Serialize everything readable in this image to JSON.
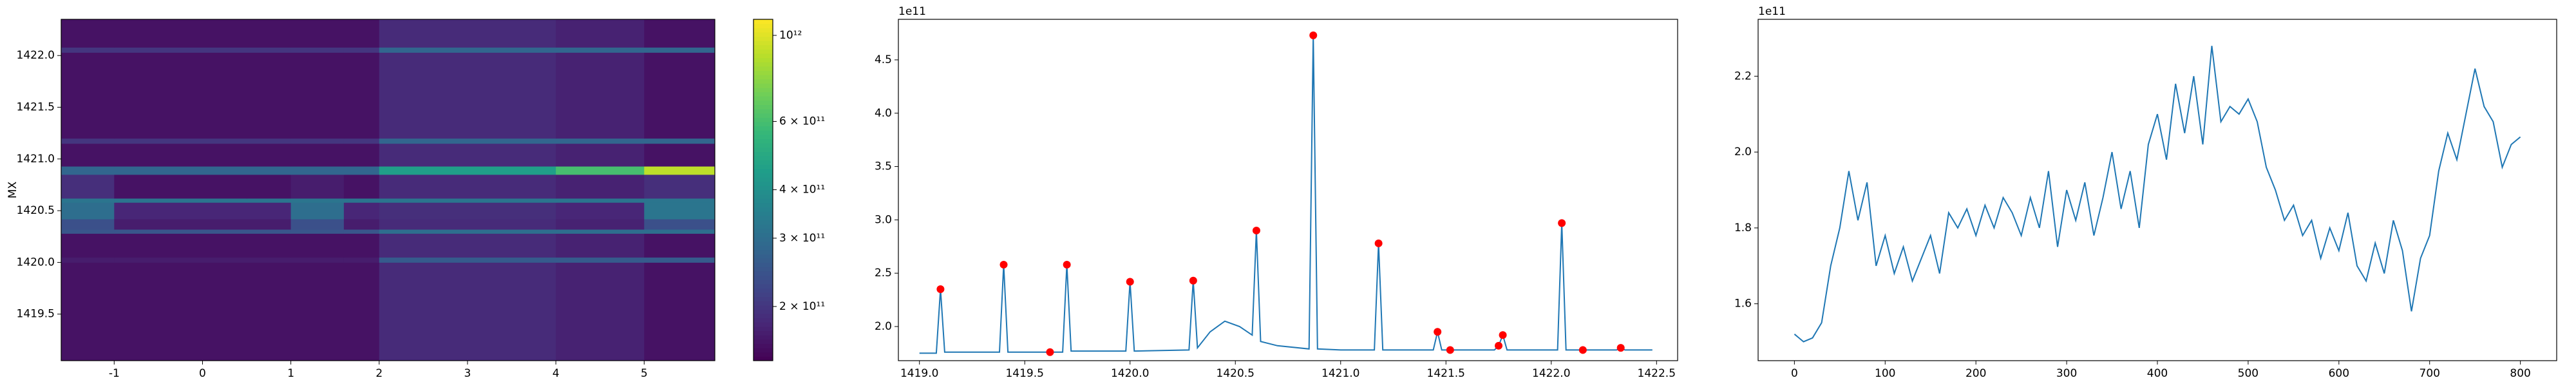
{
  "chart_data": [
    {
      "type": "heatmap",
      "ylabel": "MX",
      "colormap": "viridis",
      "log_color": true,
      "xlim": [
        -1.6,
        5.8
      ],
      "ylim": [
        1419.05,
        1422.35
      ],
      "xticks": [
        -1,
        0,
        1,
        2,
        3,
        4,
        5
      ],
      "yticks": [
        1419.5,
        {
          "value": 1420.0,
          "label": "1420.0"
        },
        1420.5,
        {
          "value": 1421.0,
          "label": "1421.0"
        },
        1421.5,
        {
          "value": 1422.0,
          "label": "1422.0"
        }
      ],
      "x_edges": [
        -1.6,
        -1.0,
        0.5,
        1.0,
        1.6,
        2.0,
        4.0,
        5.0,
        5.8
      ],
      "y_edges": [
        1419.05,
        1420.0,
        1420.05,
        1420.28,
        1420.32,
        1420.42,
        1420.58,
        1420.62,
        1420.85,
        1420.93,
        1421.15,
        1421.2,
        1422.03,
        1422.08,
        1422.35
      ],
      "z": [
        [
          160000000000.0,
          160000000000.0,
          160000000000.0,
          160000000000.0,
          160000000000.0,
          185000000000.0,
          175000000000.0,
          160000000000.0
        ],
        [
          170000000000.0,
          170000000000.0,
          170000000000.0,
          170000000000.0,
          170000000000.0,
          260000000000.0,
          260000000000.0,
          260000000000.0
        ],
        [
          160000000000.0,
          160000000000.0,
          160000000000.0,
          160000000000.0,
          160000000000.0,
          185000000000.0,
          175000000000.0,
          160000000000.0
        ],
        [
          250000000000.0,
          250000000000.0,
          250000000000.0,
          250000000000.0,
          250000000000.0,
          300000000000.0,
          300000000000.0,
          300000000000.0
        ],
        [
          240000000000.0,
          170000000000.0,
          170000000000.0,
          240000000000.0,
          170000000000.0,
          185000000000.0,
          175000000000.0,
          240000000000.0
        ],
        [
          300000000000.0,
          180000000000.0,
          180000000000.0,
          300000000000.0,
          180000000000.0,
          190000000000.0,
          180000000000.0,
          320000000000.0
        ],
        [
          320000000000.0,
          320000000000.0,
          320000000000.0,
          320000000000.0,
          320000000000.0,
          320000000000.0,
          320000000000.0,
          320000000000.0
        ],
        [
          190000000000.0,
          160000000000.0,
          160000000000.0,
          170000000000.0,
          160000000000.0,
          185000000000.0,
          175000000000.0,
          190000000000.0
        ],
        [
          280000000000.0,
          280000000000.0,
          280000000000.0,
          280000000000.0,
          280000000000.0,
          450000000000.0,
          600000000000.0,
          900000000000.0
        ],
        [
          160000000000.0,
          160000000000.0,
          160000000000.0,
          160000000000.0,
          160000000000.0,
          185000000000.0,
          175000000000.0,
          160000000000.0
        ],
        [
          200000000000.0,
          200000000000.0,
          200000000000.0,
          200000000000.0,
          200000000000.0,
          280000000000.0,
          280000000000.0,
          280000000000.0
        ],
        [
          160000000000.0,
          160000000000.0,
          160000000000.0,
          160000000000.0,
          160000000000.0,
          185000000000.0,
          175000000000.0,
          160000000000.0
        ],
        [
          200000000000.0,
          200000000000.0,
          200000000000.0,
          200000000000.0,
          200000000000.0,
          280000000000.0,
          280000000000.0,
          280000000000.0
        ],
        [
          160000000000.0,
          160000000000.0,
          160000000000.0,
          160000000000.0,
          160000000000.0,
          185000000000.0,
          175000000000.0,
          160000000000.0
        ]
      ],
      "clim": [
        145000000000.0,
        1100000000000.0
      ],
      "cticks": [
        {
          "value": 200000000000.0,
          "label": "2 × 10¹¹"
        },
        {
          "value": 300000000000.0,
          "label": "3 × 10¹¹"
        },
        {
          "value": 400000000000.0,
          "label": "4 × 10¹¹"
        },
        {
          "value": 600000000000.0,
          "label": "6 × 10¹¹"
        },
        {
          "value": 1000000000000.0,
          "label": "10¹²"
        }
      ]
    },
    {
      "type": "line",
      "offset_text": "1e11",
      "xlim": [
        1418.9,
        1422.6
      ],
      "ylim": [
        1.68,
        4.88
      ],
      "xticks": [
        {
          "value": 1419.0,
          "label": "1419.0"
        },
        1419.5,
        {
          "value": 1420.0,
          "label": "1420.0"
        },
        1420.5,
        {
          "value": 1421.0,
          "label": "1421.0"
        },
        1421.5,
        {
          "value": 1422.0,
          "label": "1422.0"
        },
        1422.5
      ],
      "yticks": [
        {
          "value": 2,
          "label": "2.0"
        },
        2.5,
        {
          "value": 3,
          "label": "3.0"
        },
        3.5,
        {
          "value": 4,
          "label": "4.0"
        },
        4.5
      ],
      "series": [
        {
          "mode": "line",
          "color": "#1f77b4",
          "x": [
            1419.0,
            1419.08,
            1419.1,
            1419.12,
            1419.38,
            1419.4,
            1419.42,
            1419.68,
            1419.7,
            1419.72,
            1419.98,
            1420.0,
            1420.02,
            1420.28,
            1420.3,
            1420.32,
            1420.38,
            1420.45,
            1420.52,
            1420.58,
            1420.6,
            1420.62,
            1420.7,
            1420.85,
            1420.87,
            1420.89,
            1421.0,
            1421.16,
            1421.18,
            1421.2,
            1421.44,
            1421.46,
            1421.48,
            1421.52,
            1421.73,
            1421.75,
            1421.77,
            1421.79,
            1422.03,
            1422.05,
            1422.07,
            1422.31,
            1422.33,
            1422.35,
            1422.48
          ],
          "values": [
            1.75,
            1.75,
            2.35,
            1.76,
            1.76,
            2.58,
            1.76,
            1.76,
            2.58,
            1.77,
            1.77,
            2.42,
            1.77,
            1.78,
            2.43,
            1.8,
            1.95,
            2.05,
            2.0,
            1.92,
            2.9,
            1.86,
            1.82,
            1.79,
            4.73,
            1.79,
            1.78,
            1.78,
            2.78,
            1.78,
            1.78,
            1.95,
            1.78,
            1.78,
            1.78,
            1.82,
            1.92,
            1.78,
            1.78,
            2.97,
            1.78,
            1.78,
            1.8,
            1.78,
            1.78
          ]
        },
        {
          "mode": "markers",
          "color": "#ff0000",
          "x": [
            1419.1,
            1419.4,
            1419.62,
            1419.7,
            1420.0,
            1420.3,
            1420.6,
            1420.87,
            1421.18,
            1421.46,
            1421.52,
            1421.75,
            1421.77,
            1422.05,
            1422.15,
            1422.33
          ],
          "values": [
            2.35,
            2.58,
            1.76,
            2.58,
            2.42,
            2.43,
            2.9,
            4.73,
            2.78,
            1.95,
            1.78,
            1.82,
            1.92,
            2.97,
            1.78,
            1.8
          ]
        }
      ]
    },
    {
      "type": "line",
      "offset_text": "1e11",
      "xlim": [
        -40,
        840
      ],
      "ylim": [
        1.45,
        2.35
      ],
      "xticks": [
        0,
        100,
        200,
        300,
        400,
        500,
        600,
        700,
        800
      ],
      "yticks": [
        1.6,
        1.8,
        {
          "value": 2,
          "label": "2.0"
        },
        2.2
      ],
      "series": [
        {
          "mode": "line",
          "color": "#1f77b4",
          "x": [
            0,
            10,
            20,
            30,
            40,
            50,
            60,
            70,
            80,
            90,
            100,
            110,
            120,
            130,
            140,
            150,
            160,
            170,
            180,
            190,
            200,
            210,
            220,
            230,
            240,
            250,
            260,
            270,
            280,
            290,
            300,
            310,
            320,
            330,
            340,
            350,
            360,
            370,
            380,
            390,
            400,
            410,
            420,
            430,
            440,
            450,
            460,
            470,
            480,
            490,
            500,
            510,
            520,
            530,
            540,
            550,
            560,
            570,
            580,
            590,
            600,
            610,
            620,
            630,
            640,
            650,
            660,
            670,
            680,
            690,
            700,
            710,
            720,
            730,
            740,
            750,
            760,
            770,
            780,
            790,
            800
          ],
          "values": [
            1.52,
            1.5,
            1.51,
            1.55,
            1.7,
            1.8,
            1.95,
            1.82,
            1.92,
            1.7,
            1.78,
            1.68,
            1.75,
            1.66,
            1.72,
            1.78,
            1.68,
            1.84,
            1.8,
            1.85,
            1.78,
            1.86,
            1.8,
            1.88,
            1.84,
            1.78,
            1.88,
            1.8,
            1.95,
            1.75,
            1.9,
            1.82,
            1.92,
            1.78,
            1.88,
            2.0,
            1.85,
            1.95,
            1.8,
            2.02,
            2.1,
            1.98,
            2.18,
            2.05,
            2.2,
            2.02,
            2.28,
            2.08,
            2.12,
            2.1,
            2.14,
            2.08,
            1.96,
            1.9,
            1.82,
            1.86,
            1.78,
            1.82,
            1.72,
            1.8,
            1.74,
            1.84,
            1.7,
            1.66,
            1.76,
            1.68,
            1.82,
            1.74,
            1.58,
            1.72,
            1.78,
            1.95,
            2.05,
            1.98,
            2.1,
            2.22,
            2.12,
            2.08,
            1.96,
            2.02,
            2.04
          ]
        }
      ]
    }
  ]
}
